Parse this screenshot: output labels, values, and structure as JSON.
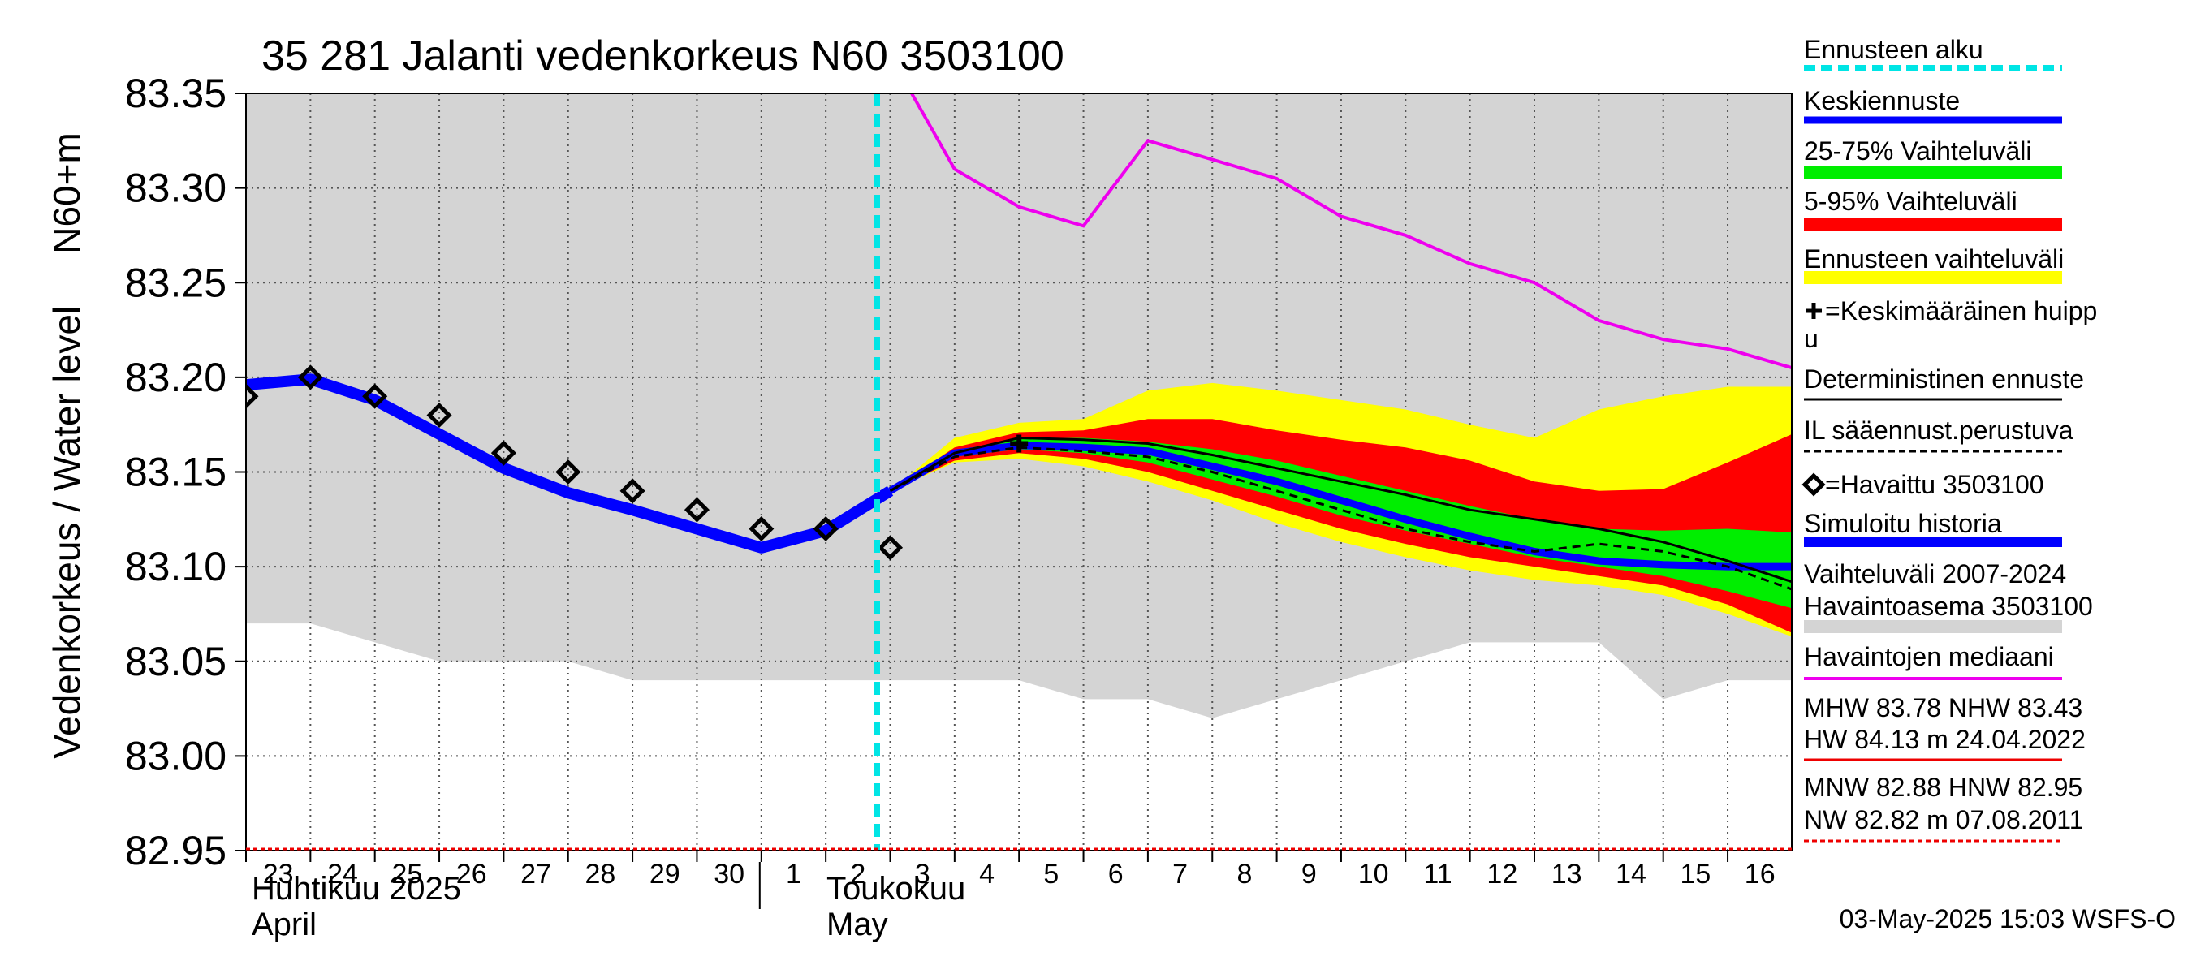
{
  "title": "35 281 Jalanti vedenkorkeus N60 3503100",
  "timestamp": "03-May-2025 15:03 WSFS-O",
  "chart_data": {
    "type": "line",
    "title": "35 281 Jalanti vedenkorkeus N60 3503100",
    "ylabel_main": "Vedenkorkeus / Water level",
    "ylabel_unit": "N60+m",
    "ylim": [
      82.95,
      83.35
    ],
    "yticks": [
      "83.35",
      "83.30",
      "83.25",
      "83.20",
      "83.15",
      "83.10",
      "83.05",
      "83.00",
      "82.95"
    ],
    "ytick_values": [
      83.35,
      83.3,
      83.25,
      83.2,
      83.15,
      83.1,
      83.05,
      83.0,
      82.95
    ],
    "x_days": [
      "23",
      "24",
      "25",
      "26",
      "27",
      "28",
      "29",
      "30",
      "1",
      "2",
      "3",
      "4",
      "5",
      "6",
      "7",
      "8",
      "9",
      "10",
      "11",
      "12",
      "13",
      "14",
      "15",
      "16"
    ],
    "x_dates": [
      "2025-04-23",
      "2025-04-24",
      "2025-04-25",
      "2025-04-26",
      "2025-04-27",
      "2025-04-28",
      "2025-04-29",
      "2025-04-30",
      "2025-05-01",
      "2025-05-02",
      "2025-05-03",
      "2025-05-04",
      "2025-05-05",
      "2025-05-06",
      "2025-05-07",
      "2025-05-08",
      "2025-05-09",
      "2025-05-10",
      "2025-05-11",
      "2025-05-12",
      "2025-05-13",
      "2025-05-14",
      "2025-05-15",
      "2025-05-16"
    ],
    "months": [
      {
        "fi": "Huhtikuu  2025",
        "en": "April"
      },
      {
        "fi": "Toukokuu",
        "en": "May"
      }
    ],
    "grid": true,
    "forecast_start_date": "2025-05-03",
    "series": {
      "historical_range": {
        "name": "Vaihteluväli 2007-2024",
        "x": [
          "2025-04-23",
          "2025-04-24",
          "2025-04-25",
          "2025-04-26",
          "2025-04-27",
          "2025-04-28",
          "2025-04-29",
          "2025-04-30",
          "2025-05-01",
          "2025-05-02",
          "2025-05-03",
          "2025-05-04",
          "2025-05-05",
          "2025-05-06",
          "2025-05-07",
          "2025-05-08",
          "2025-05-09",
          "2025-05-10",
          "2025-05-11",
          "2025-05-12",
          "2025-05-13",
          "2025-05-14",
          "2025-05-15",
          "2025-05-16",
          "2025-05-17"
        ],
        "lower": [
          83.07,
          83.07,
          83.06,
          83.05,
          83.05,
          83.05,
          83.04,
          83.04,
          83.04,
          83.04,
          83.04,
          83.04,
          83.04,
          83.03,
          83.03,
          83.02,
          83.03,
          83.04,
          83.05,
          83.06,
          83.06,
          83.06,
          83.03,
          83.04,
          83.04
        ],
        "upper": [
          83.35,
          83.35,
          83.35,
          83.35,
          83.35,
          83.35,
          83.35,
          83.35,
          83.35,
          83.35,
          83.35,
          83.35,
          83.35,
          83.35,
          83.35,
          83.35,
          83.35,
          83.35,
          83.35,
          83.35,
          83.35,
          83.35,
          83.35,
          83.35,
          83.35
        ]
      },
      "forecast_band_yellow": {
        "name": "Ennusteen vaihteluväli",
        "x": [
          "2025-05-03",
          "2025-05-04",
          "2025-05-05",
          "2025-05-06",
          "2025-05-07",
          "2025-05-08",
          "2025-05-09",
          "2025-05-10",
          "2025-05-11",
          "2025-05-12",
          "2025-05-13",
          "2025-05-14",
          "2025-05-15",
          "2025-05-16",
          "2025-05-17"
        ],
        "lower": [
          83.14,
          83.155,
          83.157,
          83.153,
          83.145,
          83.135,
          83.123,
          83.113,
          83.105,
          83.098,
          83.093,
          83.09,
          83.085,
          83.075,
          83.063
        ],
        "upper": [
          83.14,
          83.168,
          83.176,
          83.178,
          83.193,
          83.197,
          83.193,
          83.188,
          83.183,
          83.175,
          83.168,
          83.183,
          83.19,
          83.195,
          83.195
        ]
      },
      "forecast_band_red": {
        "name": "5-95% Vaihteluväli",
        "x": [
          "2025-05-03",
          "2025-05-04",
          "2025-05-05",
          "2025-05-06",
          "2025-05-07",
          "2025-05-08",
          "2025-05-09",
          "2025-05-10",
          "2025-05-11",
          "2025-05-12",
          "2025-05-13",
          "2025-05-14",
          "2025-05-15",
          "2025-05-16",
          "2025-05-17"
        ],
        "lower": [
          83.14,
          83.156,
          83.16,
          83.157,
          83.15,
          83.14,
          83.13,
          83.12,
          83.112,
          83.105,
          83.1,
          83.095,
          83.09,
          83.08,
          83.065
        ],
        "upper": [
          83.14,
          83.163,
          83.171,
          83.172,
          83.178,
          83.178,
          83.172,
          83.167,
          83.163,
          83.156,
          83.145,
          83.14,
          83.141,
          83.155,
          83.17
        ]
      },
      "forecast_band_green": {
        "name": "25-75% Vaihteluväli",
        "x": [
          "2025-05-03",
          "2025-05-04",
          "2025-05-05",
          "2025-05-06",
          "2025-05-07",
          "2025-05-08",
          "2025-05-09",
          "2025-05-10",
          "2025-05-11",
          "2025-05-12",
          "2025-05-13",
          "2025-05-14",
          "2025-05-15",
          "2025-05-16",
          "2025-05-17"
        ],
        "lower": [
          83.14,
          83.158,
          83.162,
          83.16,
          83.155,
          83.146,
          83.137,
          83.127,
          83.119,
          83.112,
          83.105,
          83.1,
          83.095,
          83.087,
          83.078
        ],
        "upper": [
          83.14,
          83.161,
          83.168,
          83.168,
          83.166,
          83.162,
          83.156,
          83.148,
          83.14,
          83.132,
          83.125,
          83.12,
          83.119,
          83.12,
          83.118
        ]
      },
      "mean_forecast": {
        "name": "Keskiennuste",
        "x": [
          "2025-05-03",
          "2025-05-04",
          "2025-05-05",
          "2025-05-06",
          "2025-05-07",
          "2025-05-08",
          "2025-05-09",
          "2025-05-10",
          "2025-05-11",
          "2025-05-12",
          "2025-05-13",
          "2025-05-14",
          "2025-05-15",
          "2025-05-16",
          "2025-05-17"
        ],
        "values": [
          83.14,
          83.16,
          83.164,
          83.163,
          83.161,
          83.153,
          83.145,
          83.135,
          83.125,
          83.116,
          83.108,
          83.103,
          83.101,
          83.1,
          83.1
        ]
      },
      "deterministic_forecast": {
        "name": "Deterministinen ennuste",
        "x": [
          "2025-05-03",
          "2025-05-04",
          "2025-05-05",
          "2025-05-06",
          "2025-05-07",
          "2025-05-08",
          "2025-05-09",
          "2025-05-10",
          "2025-05-11",
          "2025-05-12",
          "2025-05-13",
          "2025-05-14",
          "2025-05-15",
          "2025-05-16",
          "2025-05-17"
        ],
        "values": [
          83.14,
          83.16,
          83.168,
          83.167,
          83.165,
          83.159,
          83.152,
          83.145,
          83.138,
          83.13,
          83.125,
          83.12,
          83.113,
          83.103,
          83.092
        ]
      },
      "il_forecast": {
        "name": "IL sääennust.perustuva",
        "x": [
          "2025-05-03",
          "2025-05-04",
          "2025-05-05",
          "2025-05-06",
          "2025-05-07",
          "2025-05-08",
          "2025-05-09",
          "2025-05-10",
          "2025-05-11",
          "2025-05-12",
          "2025-05-13",
          "2025-05-14",
          "2025-05-15",
          "2025-05-16",
          "2025-05-17"
        ],
        "values": [
          83.14,
          83.158,
          83.163,
          83.161,
          83.158,
          83.15,
          83.14,
          83.13,
          83.12,
          83.113,
          83.108,
          83.112,
          83.108,
          83.1,
          83.088
        ]
      },
      "simulated_history": {
        "name": "Simuloitu historia",
        "x": [
          "2025-04-23",
          "2025-04-24",
          "2025-04-25",
          "2025-04-26",
          "2025-04-27",
          "2025-04-28",
          "2025-04-29",
          "2025-04-30",
          "2025-05-01",
          "2025-05-02",
          "2025-05-03"
        ],
        "values": [
          83.196,
          83.199,
          83.188,
          83.17,
          83.152,
          83.139,
          83.13,
          83.12,
          83.11,
          83.119,
          83.14
        ]
      },
      "observed": {
        "name": "=Havaittu 3503100",
        "x": [
          "2025-04-23",
          "2025-04-24",
          "2025-04-25",
          "2025-04-26",
          "2025-04-27",
          "2025-04-28",
          "2025-04-29",
          "2025-04-30",
          "2025-05-01",
          "2025-05-02",
          "2025-05-03"
        ],
        "values": [
          83.19,
          83.2,
          83.19,
          83.18,
          83.16,
          83.15,
          83.14,
          83.13,
          83.12,
          83.12,
          83.11
        ]
      },
      "median": {
        "name": "Havaintojen mediaani",
        "x": [
          "2025-05-03",
          "2025-05-04",
          "2025-05-05",
          "2025-05-06",
          "2025-05-07",
          "2025-05-08",
          "2025-05-09",
          "2025-05-10",
          "2025-05-11",
          "2025-05-12",
          "2025-05-13",
          "2025-05-14",
          "2025-05-15",
          "2025-05-16",
          "2025-05-17"
        ],
        "values": [
          83.37,
          83.31,
          83.29,
          83.28,
          83.325,
          83.315,
          83.305,
          83.285,
          83.275,
          83.26,
          83.25,
          83.23,
          83.22,
          83.215,
          83.205
        ]
      },
      "mean_peak": {
        "name": "=Keskimääräinen huippu",
        "x": "2025-05-05",
        "value": 83.165
      }
    },
    "legend": {
      "forecast_start": "Ennusteen alku",
      "mean_forecast": "Keskiennuste",
      "band_25_75": "25-75% Vaihteluväli",
      "band_5_95": "5-95% Vaihteluväli",
      "forecast_range": "Ennusteen vaihteluväli",
      "mean_peak_1": "=Keskimääräinen huipp",
      "mean_peak_2": "u",
      "deterministic": "Deterministinen ennuste",
      "il": "IL sääennust.perustuva",
      "observed": "=Havaittu 3503100",
      "simulated": "Simuloitu historia",
      "hist_range_1": "Vaihteluväli 2007-2024",
      "hist_range_2": " Havaintoasema 3503100",
      "median": "Havaintojen mediaani",
      "stats_1": "MHW  83.78 NHW  83.43",
      "stats_2": "HW  84.13 m 24.04.2022",
      "stats_3": "MNW  82.88 HNW  82.95",
      "stats_4": "NW  82.82 m 07.08.2011"
    },
    "colors": {
      "background_range": "#d4d4d4",
      "yellow": "#ffff00",
      "red": "#ff0000",
      "green": "#00ee00",
      "mean": "#0000ff",
      "simulated": "#0000ff",
      "deterministic": "#000000",
      "median": "#ee00ee",
      "forecast_start": "#00e5e5",
      "grid": "#555555",
      "stat_high": "#ee0000",
      "stat_low": "#ee0000"
    }
  }
}
